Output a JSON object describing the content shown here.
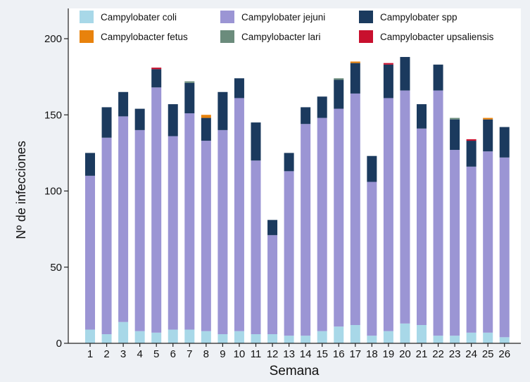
{
  "chart_data": {
    "type": "bar",
    "stacked": true,
    "title": "",
    "xlabel": "Semana",
    "ylabel": "Nº de infecciones",
    "ylim": [
      0,
      200
    ],
    "yticks": [
      0,
      50,
      100,
      150,
      200
    ],
    "grid": false,
    "legend_position": "top",
    "categories": [
      "1",
      "2",
      "3",
      "4",
      "5",
      "6",
      "7",
      "8",
      "9",
      "10",
      "11",
      "12",
      "13",
      "14",
      "15",
      "16",
      "17",
      "18",
      "19",
      "20",
      "21",
      "22",
      "23",
      "24",
      "25",
      "26"
    ],
    "series": [
      {
        "name": "Campylobater coli",
        "color": "#a8d8e8",
        "values": [
          9,
          6,
          14,
          8,
          7,
          9,
          9,
          8,
          6,
          8,
          6,
          6,
          5,
          5,
          8,
          11,
          12,
          5,
          8,
          13,
          12,
          5,
          5,
          7,
          7,
          4
        ]
      },
      {
        "name": "Campylobater jejuni",
        "color": "#9b95d4",
        "values": [
          101,
          129,
          135,
          132,
          161,
          127,
          142,
          125,
          134,
          153,
          114,
          65,
          108,
          139,
          140,
          143,
          152,
          101,
          153,
          153,
          129,
          161,
          122,
          109,
          119,
          118
        ]
      },
      {
        "name": "Campylobater spp",
        "color": "#1b3a5e",
        "values": [
          15,
          20,
          16,
          14,
          12,
          21,
          20,
          15,
          25,
          13,
          25,
          10,
          12,
          11,
          14,
          19,
          20,
          17,
          22,
          22,
          16,
          17,
          20,
          17,
          21,
          20
        ]
      },
      {
        "name": "Campylobacter fetus",
        "color": "#e8820c",
        "values": [
          0,
          0,
          0,
          0,
          0,
          0,
          0,
          2,
          0,
          0,
          0,
          0,
          0,
          0,
          0,
          0,
          1,
          0,
          0,
          0,
          0,
          0,
          0,
          0,
          1,
          0
        ]
      },
      {
        "name": "Campylobacter lari",
        "color": "#6b8c7c",
        "values": [
          0,
          0,
          0,
          0,
          0,
          0,
          1,
          0,
          0,
          0,
          0,
          0,
          0,
          0,
          0,
          1,
          0,
          0,
          0,
          0,
          0,
          0,
          1,
          0,
          0,
          0
        ]
      },
      {
        "name": "Campylobacter upsaliensis",
        "color": "#c8102e",
        "values": [
          0,
          0,
          0,
          0,
          1,
          0,
          0,
          0,
          0,
          0,
          0,
          0,
          0,
          0,
          0,
          0,
          0,
          0,
          1,
          0,
          0,
          0,
          0,
          1,
          0,
          0
        ]
      }
    ]
  }
}
